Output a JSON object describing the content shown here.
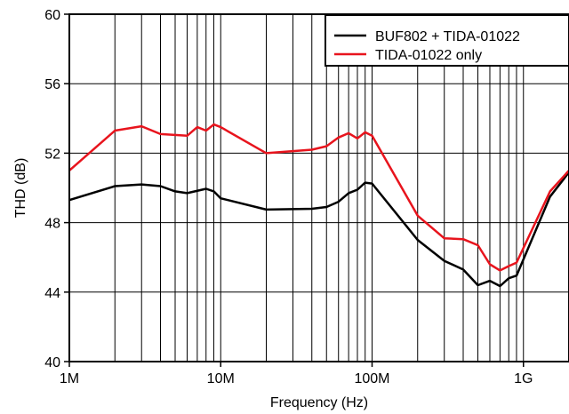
{
  "chart_data": {
    "type": "line",
    "title": "",
    "xlabel": "Frequency (Hz)",
    "ylabel": "THD (dB)",
    "x_scale": "log",
    "xlim": [
      1000000,
      2000000000
    ],
    "ylim": [
      40,
      60
    ],
    "grid": true,
    "legend_position": "top-right",
    "x_ticks": [
      {
        "value": 1000000,
        "label": "1M"
      },
      {
        "value": 10000000,
        "label": "10M"
      },
      {
        "value": 100000000,
        "label": "100M"
      },
      {
        "value": 1000000000,
        "label": "1G"
      }
    ],
    "y_ticks": [
      {
        "value": 40,
        "label": "40"
      },
      {
        "value": 44,
        "label": "44"
      },
      {
        "value": 48,
        "label": "48"
      },
      {
        "value": 52,
        "label": "52"
      },
      {
        "value": 56,
        "label": "56"
      },
      {
        "value": 60,
        "label": "60"
      }
    ],
    "series": [
      {
        "name": "BUF802 + TIDA-01022",
        "color": "#000000",
        "points": [
          [
            1000000,
            49.3
          ],
          [
            2000000,
            50.1
          ],
          [
            3000000,
            50.2
          ],
          [
            4000000,
            50.1
          ],
          [
            5000000,
            49.8
          ],
          [
            6000000,
            49.7
          ],
          [
            8000000,
            49.95
          ],
          [
            9000000,
            49.8
          ],
          [
            10000000,
            49.4
          ],
          [
            20000000,
            48.75
          ],
          [
            40000000,
            48.8
          ],
          [
            50000000,
            48.9
          ],
          [
            60000000,
            49.2
          ],
          [
            70000000,
            49.7
          ],
          [
            80000000,
            49.9
          ],
          [
            90000000,
            50.3
          ],
          [
            100000000,
            50.25
          ],
          [
            200000000,
            47.0
          ],
          [
            300000000,
            45.8
          ],
          [
            400000000,
            45.3
          ],
          [
            500000000,
            44.4
          ],
          [
            600000000,
            44.65
          ],
          [
            700000000,
            44.35
          ],
          [
            800000000,
            44.8
          ],
          [
            900000000,
            44.95
          ],
          [
            1500000000,
            49.5
          ],
          [
            2000000000,
            50.9
          ]
        ]
      },
      {
        "name": "TIDA-01022 only",
        "color": "#e8141d",
        "points": [
          [
            1000000,
            51.0
          ],
          [
            2000000,
            53.3
          ],
          [
            3000000,
            53.55
          ],
          [
            4000000,
            53.1
          ],
          [
            6000000,
            53.0
          ],
          [
            7000000,
            53.5
          ],
          [
            8000000,
            53.3
          ],
          [
            9000000,
            53.65
          ],
          [
            10000000,
            53.5
          ],
          [
            20000000,
            52.0
          ],
          [
            40000000,
            52.2
          ],
          [
            50000000,
            52.4
          ],
          [
            60000000,
            52.9
          ],
          [
            70000000,
            53.15
          ],
          [
            80000000,
            52.85
          ],
          [
            90000000,
            53.2
          ],
          [
            100000000,
            53.0
          ],
          [
            200000000,
            48.4
          ],
          [
            300000000,
            47.1
          ],
          [
            400000000,
            47.05
          ],
          [
            500000000,
            46.7
          ],
          [
            600000000,
            45.6
          ],
          [
            700000000,
            45.25
          ],
          [
            800000000,
            45.5
          ],
          [
            900000000,
            45.7
          ],
          [
            1500000000,
            49.8
          ],
          [
            2000000000,
            51.0
          ]
        ]
      }
    ]
  }
}
